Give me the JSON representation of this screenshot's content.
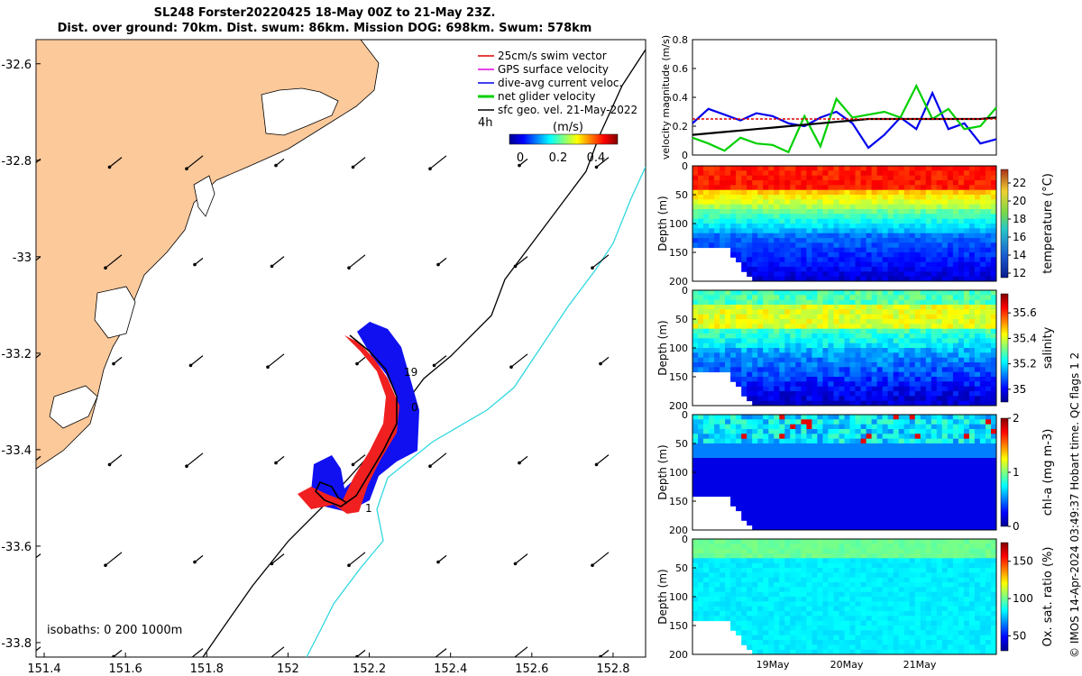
{
  "title": {
    "line1": "SL248 Forster20220425 18-May 00Z to 21-May 23Z.",
    "line2": "Dist. over ground: 70km. Dist. swum: 86km. Mission DOG: 698km. Swum: 578km"
  },
  "map": {
    "x_ticks": [
      "151.4",
      "151.6",
      "151.8",
      "152",
      "152.2",
      "152.4",
      "152.6",
      "152.8"
    ],
    "y_ticks": [
      "-32.6",
      "-32.8",
      "-33",
      "-33.2",
      "-33.4",
      "-33.6",
      "-33.8"
    ],
    "xlim": [
      151.38,
      152.88
    ],
    "ylim": [
      -33.83,
      -32.55
    ],
    "legend": [
      {
        "label": "25cm/s swim vector",
        "color": "#e00000"
      },
      {
        "label": "GPS surface velocity",
        "color": "#e000e0"
      },
      {
        "label": "dive-avg current veloc.",
        "color": "#0000ee"
      },
      {
        "label": "net glider velocity",
        "color": "#00d000"
      },
      {
        "label": "sfc geo. vel. 21-May-2022",
        "color": "#000000"
      }
    ],
    "time_step_label": "4h",
    "colorbar_unit": "(m/s)",
    "colorbar_ticks": [
      "0",
      "0.2",
      "0.4"
    ],
    "track_labels": [
      "19",
      "0",
      "1"
    ],
    "isobaths_label": "isobaths: 0   200  1000m"
  },
  "chart_data": [
    {
      "type": "line",
      "ylabel": "velocity magnitude (m/s)",
      "ylim": [
        0,
        0.8
      ],
      "yticks": [
        "0",
        "0.2",
        "0.4",
        "0.6",
        "0.8"
      ],
      "series": [
        {
          "color": "#0000ee",
          "values": [
            0.22,
            0.32,
            0.28,
            0.24,
            0.29,
            0.27,
            0.22,
            0.2,
            0.26,
            0.3,
            0.22,
            0.05,
            0.14,
            0.26,
            0.18,
            0.43,
            0.18,
            0.22,
            0.08,
            0.11
          ]
        },
        {
          "color": "#00d000",
          "values": [
            0.12,
            0.08,
            0.03,
            0.12,
            0.08,
            0.07,
            0.02,
            0.27,
            0.06,
            0.39,
            0.26,
            0.28,
            0.3,
            0.26,
            0.48,
            0.25,
            0.32,
            0.18,
            0.2,
            0.33
          ]
        },
        {
          "color": "#000000",
          "values": [
            0.14,
            0.15,
            0.16,
            0.17,
            0.18,
            0.19,
            0.2,
            0.21,
            0.22,
            0.23,
            0.24,
            0.25,
            0.25,
            0.25,
            0.25,
            0.25,
            0.25,
            0.25,
            0.25,
            0.26
          ]
        },
        {
          "color": "#e00000",
          "values": [
            0.25,
            0.25,
            0.25,
            0.25,
            0.25,
            0.25,
            0.25,
            0.25,
            0.25,
            0.25,
            0.25,
            0.25,
            0.25,
            0.25,
            0.25,
            0.25,
            0.25,
            0.25,
            0.25,
            0.25
          ]
        }
      ]
    },
    {
      "type": "heatmap",
      "ylabel": "Depth (m)",
      "cbar_label": "temperature (°C)",
      "cbar_ticks": [
        "12",
        "14",
        "16",
        "18",
        "20",
        "22"
      ],
      "cbar_range": [
        11.5,
        23.5
      ],
      "yticks": [
        "0",
        "50",
        "100",
        "150",
        "200"
      ]
    },
    {
      "type": "heatmap",
      "ylabel": "Depth (m)",
      "cbar_label": "salinity",
      "cbar_ticks": [
        "35",
        "35.2",
        "35.4",
        "35.6"
      ],
      "cbar_range": [
        34.9,
        35.75
      ],
      "yticks": [
        "0",
        "50",
        "100",
        "150",
        "200"
      ]
    },
    {
      "type": "heatmap",
      "ylabel": "Depth (m)",
      "cbar_label": "chl-a (mg m-3)",
      "cbar_ticks": [
        "0",
        "1",
        "2"
      ],
      "cbar_range": [
        0,
        2
      ],
      "yticks": [
        "0",
        "50",
        "100",
        "150",
        "200"
      ]
    },
    {
      "type": "heatmap",
      "ylabel": "Depth (m)",
      "cbar_label": "Ox. sat. ratio (%)",
      "cbar_ticks": [
        "50",
        "100",
        "150"
      ],
      "cbar_range": [
        30,
        175
      ],
      "yticks": [
        "0",
        "50",
        "100",
        "150",
        "200"
      ],
      "xticks": [
        "19May",
        "20May",
        "21May"
      ]
    }
  ],
  "copyright": "© IMOS 14-Apr-2024 03:49:37 Hobart time. QC flags 1  2"
}
